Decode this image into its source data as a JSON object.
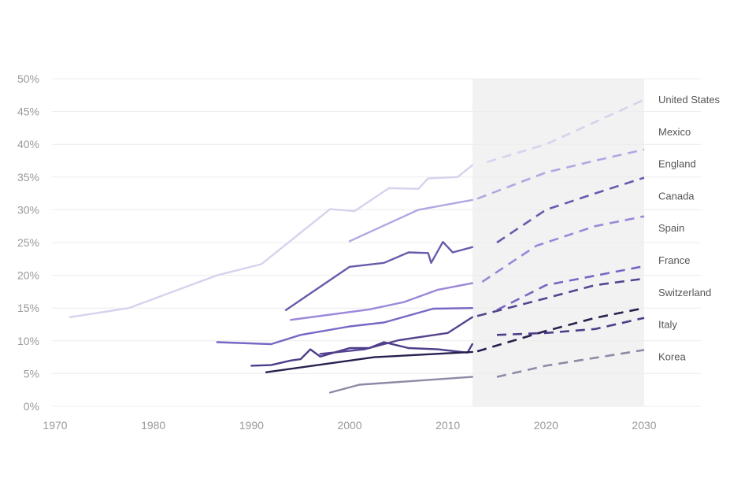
{
  "chart_data": {
    "type": "line",
    "title": "",
    "xlabel": "",
    "ylabel": "",
    "xlim": [
      1970,
      2030
    ],
    "ylim": [
      0,
      50
    ],
    "x_ticks": [
      "1970",
      "1980",
      "1990",
      "2000",
      "2010",
      "2020",
      "2030"
    ],
    "y_ticks": [
      "0%",
      "5%",
      "10%",
      "15%",
      "20%",
      "25%",
      "30%",
      "35%",
      "40%",
      "45%",
      "50%"
    ],
    "grid": true,
    "projection_shading": [
      2012.5,
      2030
    ],
    "series": [
      {
        "name": "United States",
        "color": "#d6d2ee",
        "actual": [
          [
            1971.5,
            13.6
          ],
          [
            1977.5,
            15.0
          ],
          [
            1986.5,
            20.0
          ],
          [
            1991,
            21.7
          ],
          [
            1998,
            30.1
          ],
          [
            2000.5,
            29.8
          ],
          [
            2004,
            33.3
          ],
          [
            2007,
            33.2
          ],
          [
            2008,
            34.8
          ],
          [
            2011,
            35.0
          ],
          [
            2012.5,
            36.8
          ]
        ],
        "projected": [
          [
            2014,
            37.3
          ],
          [
            2020,
            40.0
          ],
          [
            2030,
            46.8
          ]
        ]
      },
      {
        "name": "Mexico",
        "color": "#b3a7e2",
        "actual": [
          [
            2000,
            25.2
          ],
          [
            2007,
            30.0
          ],
          [
            2012.5,
            31.5
          ]
        ],
        "projected": [
          [
            2013,
            31.7
          ],
          [
            2020,
            35.7
          ],
          [
            2025,
            37.5
          ],
          [
            2030,
            39.2
          ]
        ]
      },
      {
        "name": "England",
        "color": "#6a5aac",
        "actual": [
          [
            1993.5,
            14.7
          ],
          [
            2000,
            21.3
          ],
          [
            2003.5,
            21.9
          ],
          [
            2006,
            23.5
          ],
          [
            2008,
            23.4
          ],
          [
            2008.3,
            21.9
          ],
          [
            2009.5,
            25.1
          ],
          [
            2010.5,
            23.5
          ],
          [
            2012.5,
            24.3
          ]
        ],
        "projected": [
          [
            2015,
            25.0
          ],
          [
            2020,
            30.0
          ],
          [
            2025,
            32.5
          ],
          [
            2030,
            34.9
          ]
        ]
      },
      {
        "name": "Canada",
        "color": "#9a87d9",
        "actual": [
          [
            1994,
            13.2
          ],
          [
            2002,
            14.8
          ],
          [
            2005.5,
            15.9
          ],
          [
            2009,
            17.8
          ],
          [
            2012.5,
            18.8
          ]
        ],
        "projected": [
          [
            2013.5,
            19.0
          ],
          [
            2019,
            24.5
          ],
          [
            2025,
            27.5
          ],
          [
            2030,
            29.0
          ]
        ]
      },
      {
        "name": "Spain",
        "color": "#7966c5",
        "actual": [
          [
            1986.5,
            9.8
          ],
          [
            1992,
            9.5
          ],
          [
            1995,
            10.9
          ],
          [
            2000,
            12.2
          ],
          [
            2003.5,
            12.8
          ],
          [
            2008.5,
            14.9
          ],
          [
            2012.5,
            15.0
          ]
        ],
        "projected": [
          [
            2015,
            14.7
          ],
          [
            2020,
            18.5
          ],
          [
            2030,
            21.4
          ]
        ]
      },
      {
        "name": "France",
        "color": "#55438f",
        "actual": [
          [
            1997,
            8.0
          ],
          [
            2001.5,
            8.7
          ],
          [
            2005,
            10.1
          ],
          [
            2010,
            11.2
          ],
          [
            2012.5,
            13.6
          ]
        ],
        "projected": [
          [
            2013,
            13.8
          ],
          [
            2020,
            16.5
          ],
          [
            2025,
            18.5
          ],
          [
            2030,
            19.5
          ]
        ]
      },
      {
        "name": "Switzerland",
        "color": "#4e3d8a",
        "actual": [
          [
            1990,
            6.2
          ],
          [
            1992,
            6.3
          ],
          [
            1994,
            7.0
          ],
          [
            1995,
            7.2
          ],
          [
            1996,
            8.7
          ],
          [
            1997,
            7.6
          ],
          [
            2000,
            8.9
          ],
          [
            2002,
            8.9
          ],
          [
            2003.5,
            9.8
          ],
          [
            2006,
            8.9
          ],
          [
            2009,
            8.7
          ],
          [
            2012,
            8.2
          ],
          [
            2012.5,
            9.5
          ]
        ],
        "projected": [
          [
            2015,
            10.9
          ],
          [
            2020,
            11.2
          ],
          [
            2025,
            11.8
          ],
          [
            2030,
            13.5
          ]
        ]
      },
      {
        "name": "Italy",
        "color": "#2a1f4e",
        "actual": [
          [
            1991.5,
            5.2
          ],
          [
            2002.5,
            7.5
          ],
          [
            2012.5,
            8.3
          ]
        ],
        "projected": [
          [
            2013,
            8.4
          ],
          [
            2020,
            11.5
          ],
          [
            2025,
            13.5
          ],
          [
            2030,
            15.0
          ]
        ]
      },
      {
        "name": "Korea",
        "color": "#8d89a6",
        "actual": [
          [
            1998,
            2.1
          ],
          [
            2001,
            3.3
          ],
          [
            2012.5,
            4.5
          ]
        ],
        "projected": [
          [
            2015,
            4.5
          ],
          [
            2020,
            6.2
          ],
          [
            2030,
            8.6
          ]
        ]
      }
    ]
  }
}
